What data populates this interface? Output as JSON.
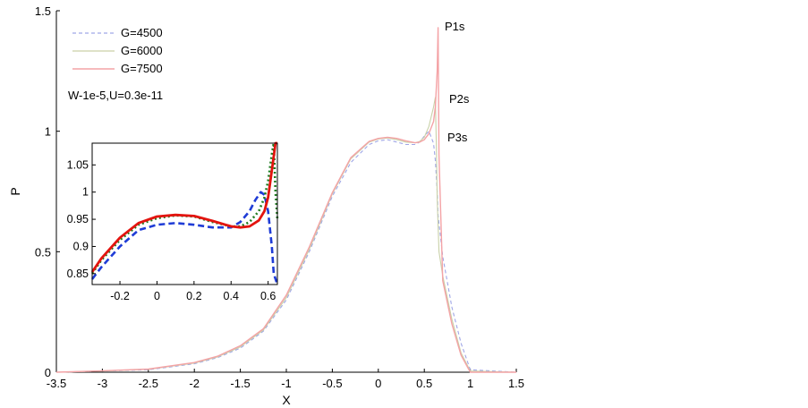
{
  "chart_data": {
    "type": "line",
    "xlabel": "X",
    "ylabel": "P",
    "xlim": [
      -3.5,
      1.5
    ],
    "ylim": [
      0,
      1.5
    ],
    "xticks": [
      "-3.5",
      "-3",
      "-2.5",
      "-2",
      "-1.5",
      "-1",
      "-0.5",
      "0",
      "0.5",
      "1",
      "1.5"
    ],
    "yticks": [
      "0",
      "0.5",
      "1",
      "1.5"
    ],
    "legend_placement": "top-left",
    "annotation": "W-1e-5,U=0.3e-11",
    "peak_labels": [
      "P1s",
      "P2s",
      "P3s"
    ],
    "colors": {
      "G=4500": "#9fa6e6",
      "G=6000": "#c9d1a8",
      "G=7500": "#f4a3a6"
    },
    "series": [
      {
        "name": "G=4500",
        "x": [
          -3.5,
          -3.0,
          -2.5,
          -2.0,
          -1.75,
          -1.5,
          -1.25,
          -1.0,
          -0.75,
          -0.5,
          -0.3,
          -0.1,
          0.0,
          0.1,
          0.2,
          0.3,
          0.4,
          0.45,
          0.5,
          0.55,
          0.6,
          0.62,
          0.64,
          0.65,
          0.7,
          0.8,
          0.9,
          1.0,
          1.5
        ],
        "y": [
          0.0,
          0.005,
          0.01,
          0.035,
          0.06,
          0.1,
          0.17,
          0.3,
          0.5,
          0.73,
          0.87,
          0.945,
          0.96,
          0.965,
          0.955,
          0.945,
          0.945,
          0.955,
          0.98,
          1.0,
          0.95,
          0.88,
          0.75,
          0.65,
          0.48,
          0.27,
          0.12,
          0.01,
          0.0
        ]
      },
      {
        "name": "G=6000",
        "x": [
          -3.5,
          -3.0,
          -2.5,
          -2.0,
          -1.75,
          -1.5,
          -1.25,
          -1.0,
          -0.75,
          -0.5,
          -0.3,
          -0.1,
          0.0,
          0.1,
          0.2,
          0.3,
          0.4,
          0.45,
          0.5,
          0.55,
          0.6,
          0.62,
          0.63,
          0.64,
          0.66,
          0.7,
          0.8,
          0.9,
          1.0,
          1.5
        ],
        "y": [
          0.0,
          0.005,
          0.012,
          0.038,
          0.063,
          0.105,
          0.175,
          0.31,
          0.51,
          0.74,
          0.885,
          0.955,
          0.968,
          0.972,
          0.965,
          0.955,
          0.952,
          0.958,
          0.975,
          1.02,
          1.1,
          1.14,
          0.95,
          0.72,
          0.5,
          0.4,
          0.22,
          0.08,
          0.005,
          0.0
        ]
      },
      {
        "name": "G=7500",
        "x": [
          -3.5,
          -3.0,
          -2.5,
          -2.0,
          -1.75,
          -1.5,
          -1.25,
          -1.0,
          -0.75,
          -0.5,
          -0.3,
          -0.1,
          0.0,
          0.1,
          0.2,
          0.3,
          0.4,
          0.45,
          0.5,
          0.55,
          0.6,
          0.62,
          0.64,
          0.65,
          0.66,
          0.7,
          0.8,
          0.9,
          1.0,
          1.5
        ],
        "y": [
          0.0,
          0.006,
          0.013,
          0.04,
          0.066,
          0.11,
          0.18,
          0.32,
          0.52,
          0.745,
          0.89,
          0.958,
          0.97,
          0.975,
          0.97,
          0.96,
          0.952,
          0.955,
          0.965,
          0.99,
          1.04,
          1.1,
          1.25,
          1.43,
          0.9,
          0.38,
          0.2,
          0.07,
          0.0,
          0.0
        ]
      }
    ],
    "inset": {
      "type": "line",
      "xlim": [
        -0.35,
        0.65
      ],
      "ylim": [
        0.83,
        1.09
      ],
      "xticks": [
        "-0.2",
        "0",
        "0.2",
        "0.4",
        "0.6"
      ],
      "yticks": [
        "0.85",
        "0.9",
        "0.95",
        "1",
        "1.05"
      ],
      "colors": {
        "G=4500": "#1f3cd6",
        "G=6000": "#1f7a1f",
        "G=7500": "#e3140f"
      },
      "series": [
        {
          "name": "G=4500",
          "x": [
            -0.35,
            -0.3,
            -0.2,
            -0.1,
            0.0,
            0.1,
            0.2,
            0.3,
            0.4,
            0.45,
            0.5,
            0.53,
            0.56,
            0.58,
            0.6,
            0.62,
            0.63,
            0.65
          ],
          "y": [
            0.84,
            0.862,
            0.9,
            0.93,
            0.94,
            0.943,
            0.94,
            0.935,
            0.935,
            0.945,
            0.965,
            0.985,
            1.0,
            0.995,
            0.965,
            0.9,
            0.85,
            0.7
          ]
        },
        {
          "name": "G=6000",
          "x": [
            -0.35,
            -0.3,
            -0.2,
            -0.1,
            0.0,
            0.1,
            0.2,
            0.3,
            0.4,
            0.45,
            0.5,
            0.55,
            0.58,
            0.6,
            0.62,
            0.63,
            0.64,
            0.65
          ],
          "y": [
            0.85,
            0.875,
            0.912,
            0.94,
            0.952,
            0.957,
            0.955,
            0.945,
            0.937,
            0.937,
            0.945,
            0.965,
            0.99,
            1.02,
            1.07,
            1.1,
            1.0,
            0.95
          ]
        },
        {
          "name": "G=7500",
          "x": [
            -0.35,
            -0.3,
            -0.2,
            -0.1,
            0.0,
            0.1,
            0.2,
            0.3,
            0.4,
            0.45,
            0.5,
            0.55,
            0.58,
            0.6,
            0.62,
            0.64,
            0.65
          ],
          "y": [
            0.853,
            0.878,
            0.916,
            0.943,
            0.955,
            0.958,
            0.956,
            0.947,
            0.937,
            0.935,
            0.937,
            0.948,
            0.965,
            0.99,
            1.04,
            1.09,
            1.1
          ]
        }
      ]
    }
  }
}
